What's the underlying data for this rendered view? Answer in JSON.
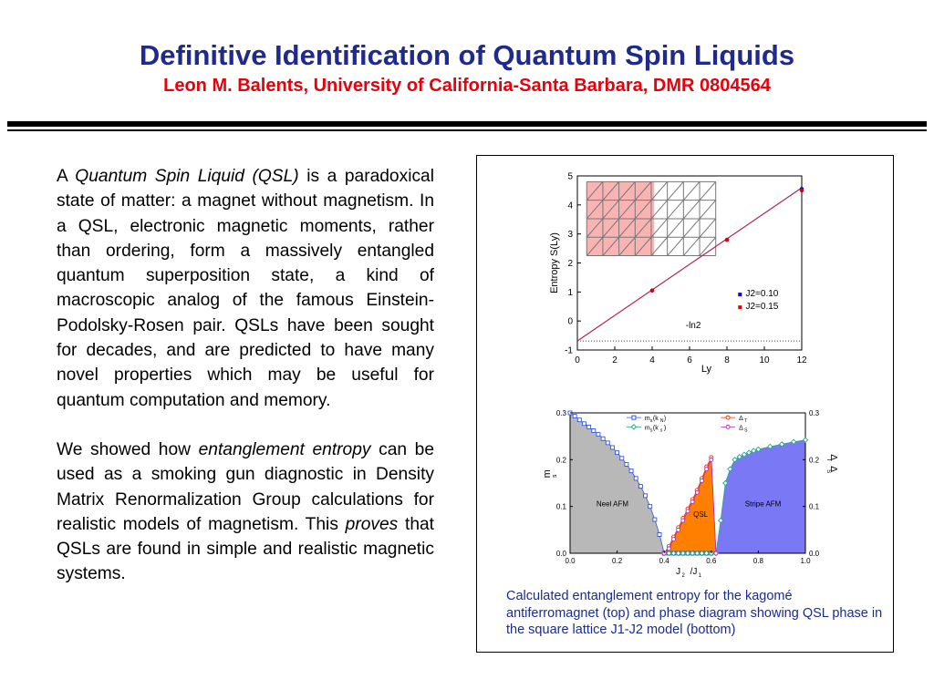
{
  "header": {
    "title": "Definitive Identification of Quantum Spin Liquids",
    "subtitle": "Leon M. Balents, University of California-Santa Barbara, DMR 0804564"
  },
  "body": {
    "p1": [
      {
        "text": "A ",
        "italic": false
      },
      {
        "text": "Quantum Spin Liquid (QSL)",
        "italic": true
      },
      {
        "text": " is a paradoxical state of matter: a magnet without magnetism.  In a QSL, electronic magnetic moments, rather than ordering, form a massively entangled quantum superposition state, a kind of macroscopic analog of the famous Einstein-Podolsky-Rosen pair.  QSLs have been sought for decades, and are predicted to have many novel properties which may be useful for quantum computation and memory.",
        "italic": false
      }
    ],
    "p2": [
      {
        "text": "We showed how ",
        "italic": false
      },
      {
        "text": "entanglement entropy",
        "italic": true
      },
      {
        "text": " can be used as a smoking gun diagnostic in Density Matrix Renormalization Group calculations for realistic models of magnetism.  This ",
        "italic": false
      },
      {
        "text": "proves",
        "italic": true
      },
      {
        "text": " that QSLs are found in simple and realistic magnetic systems.",
        "italic": false
      }
    ]
  },
  "figure": {
    "caption": "Calculated entanglement entropy for the kagomé antiferromagnet (top) and phase diagram showing QSL phase in the square lattice J1-J2 model (bottom)"
  },
  "chart_data": [
    {
      "type": "scatter",
      "title": "",
      "xlabel": "Ly",
      "ylabel": "Entropy S(Ly)",
      "xlim": [
        0,
        12
      ],
      "ylim": [
        -1,
        5
      ],
      "xticks": [
        "0",
        "2",
        "4",
        "6",
        "8",
        "10",
        "12"
      ],
      "yticks": [
        "-1",
        "0",
        "1",
        "2",
        "3",
        "4",
        "5"
      ],
      "series": [
        {
          "name": "J2=0.10",
          "color": "#0000ee",
          "x": [
            4,
            8,
            12
          ],
          "y": [
            1.05,
            2.8,
            4.55
          ]
        },
        {
          "name": "J2=0.15",
          "color": "#dd0000",
          "x": [
            4,
            8,
            12
          ],
          "y": [
            1.05,
            2.8,
            4.5
          ]
        }
      ],
      "fit_line": {
        "slope": 0.44,
        "intercept": -0.69
      },
      "reference_line": {
        "label": "-ln2",
        "y": -0.69
      },
      "legend_position": "bottom-right",
      "inset": "kagome lattice strip (left cylinder half shaded red)"
    },
    {
      "type": "line",
      "title": "",
      "xlabel": "J2/J1",
      "ylabel_left": "m_s",
      "ylabel_right": "Δ_T, Δ_S",
      "xlim": [
        0,
        1
      ],
      "ylim": [
        0,
        0.3
      ],
      "xticks": [
        "0.0",
        "0.2",
        "0.4",
        "0.6",
        "0.8",
        "1.0"
      ],
      "yticks": [
        "0.0",
        "0.1",
        "0.2",
        "0.3"
      ],
      "regions": [
        {
          "label": "Neel AFM",
          "color": "#b8b8b8"
        },
        {
          "label": "QSL",
          "color": "#ff7f00"
        },
        {
          "label": "Stripe AFM",
          "color": "#7a78f5"
        }
      ],
      "series": [
        {
          "name": "m_s(k_N)",
          "color": "#3355dd",
          "marker": "square",
          "x": [
            0.0,
            0.02,
            0.04,
            0.06,
            0.08,
            0.1,
            0.12,
            0.14,
            0.16,
            0.18,
            0.2,
            0.22,
            0.24,
            0.26,
            0.28,
            0.3,
            0.32,
            0.34,
            0.36,
            0.38,
            0.4,
            0.42,
            0.44,
            0.46,
            0.48,
            0.5,
            0.52,
            0.54,
            0.56,
            0.58,
            0.6
          ],
          "y": [
            0.3,
            0.293,
            0.285,
            0.277,
            0.27,
            0.262,
            0.254,
            0.245,
            0.236,
            0.226,
            0.215,
            0.203,
            0.19,
            0.176,
            0.16,
            0.143,
            0.123,
            0.1,
            0.072,
            0.04,
            0.0,
            0.0,
            0.0,
            0.0,
            0.0,
            0.0,
            0.0,
            0.0,
            0.0,
            0.0,
            0.0
          ]
        },
        {
          "name": "m_s(k_s)",
          "color": "#22aa88",
          "marker": "diamond",
          "x": [
            0.4,
            0.42,
            0.44,
            0.46,
            0.48,
            0.5,
            0.52,
            0.54,
            0.56,
            0.58,
            0.6,
            0.62,
            0.64,
            0.66,
            0.68,
            0.7,
            0.72,
            0.74,
            0.76,
            0.78,
            0.8,
            0.85,
            0.9,
            0.95,
            1.0
          ],
          "y": [
            0.0,
            0.0,
            0.0,
            0.0,
            0.0,
            0.0,
            0.0,
            0.0,
            0.0,
            0.0,
            0.0,
            0.0,
            0.07,
            0.15,
            0.18,
            0.2,
            0.206,
            0.211,
            0.215,
            0.219,
            0.222,
            0.228,
            0.233,
            0.238,
            0.242
          ]
        },
        {
          "name": "Δ_T",
          "color": "#ee3311",
          "marker": "circle",
          "x": [
            0.4,
            0.42,
            0.44,
            0.46,
            0.48,
            0.5,
            0.52,
            0.54,
            0.56,
            0.58,
            0.6,
            0.62
          ],
          "y": [
            0.0,
            0.015,
            0.035,
            0.055,
            0.075,
            0.095,
            0.115,
            0.135,
            0.16,
            0.185,
            0.205,
            0.0
          ]
        },
        {
          "name": "Δ_S",
          "color": "#aa33bb",
          "marker": "circle",
          "x": [
            0.4,
            0.42,
            0.44,
            0.46,
            0.48,
            0.5,
            0.52,
            0.54,
            0.56,
            0.58,
            0.6,
            0.62
          ],
          "y": [
            0.0,
            0.01,
            0.03,
            0.05,
            0.07,
            0.09,
            0.11,
            0.13,
            0.155,
            0.18,
            0.2,
            0.0
          ]
        }
      ],
      "legend_position": "top"
    }
  ]
}
